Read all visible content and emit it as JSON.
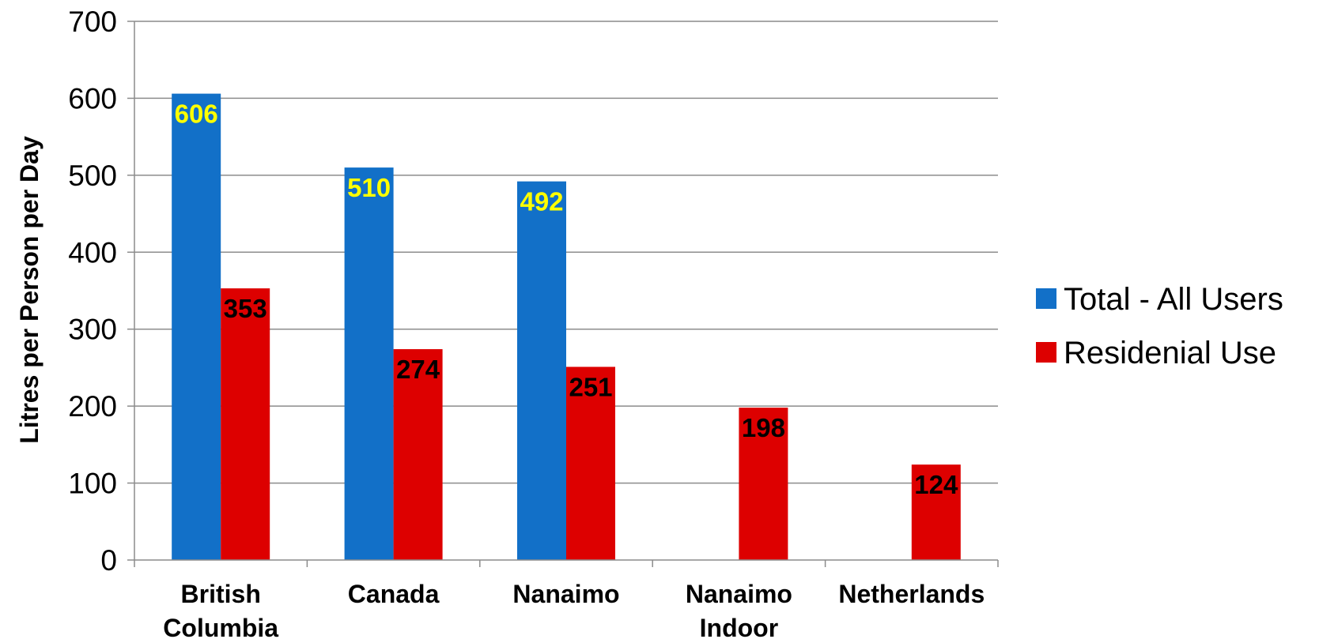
{
  "chart_data": {
    "type": "bar",
    "categories": [
      [
        "British",
        "Columbia"
      ],
      [
        "Canada"
      ],
      [
        "Nanaimo"
      ],
      [
        "Nanaimo",
        "Indoor"
      ],
      [
        "Netherlands"
      ]
    ],
    "series": [
      {
        "name": "Total - All Users",
        "color": "#1270C8",
        "label_color": "#FFFF00",
        "values": [
          606,
          510,
          492,
          null,
          null
        ]
      },
      {
        "name": "Residenial Use",
        "color": "#DD0000",
        "label_color": "#000000",
        "values": [
          353,
          274,
          251,
          198,
          124
        ]
      }
    ],
    "ylabel": "Litres per Person per Day",
    "ylim": [
      0,
      700
    ],
    "yticks": [
      0,
      100,
      200,
      300,
      400,
      500,
      600,
      700
    ],
    "grid": true,
    "legend_position": "right"
  }
}
